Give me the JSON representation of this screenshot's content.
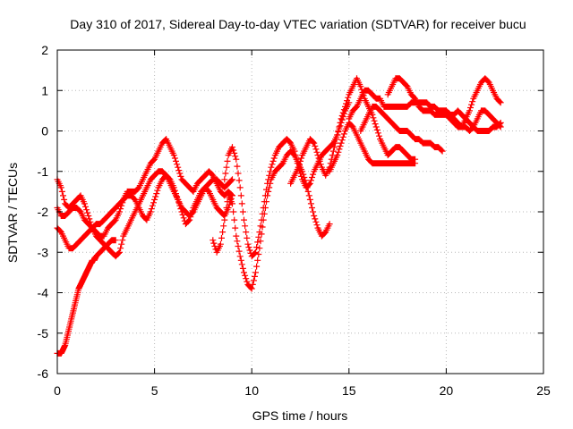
{
  "chart_data": {
    "type": "scatter",
    "title": "Day 310 of 2017, Sidereal Day-to-day VTEC variation (SDTVAR) for receiver bucu",
    "xlabel": "GPS time / hours",
    "ylabel": "SDTVAR / TECUs",
    "xlim": [
      0,
      25
    ],
    "ylim": [
      -6,
      2
    ],
    "xticks": [
      0,
      5,
      10,
      15,
      20,
      25
    ],
    "yticks": [
      -6,
      -5,
      -4,
      -3,
      -2,
      -1,
      0,
      1,
      2
    ],
    "xtick_labels": [
      "0",
      "5",
      "10",
      "15",
      "20",
      "25"
    ],
    "ytick_labels": [
      "-6",
      "-5",
      "-4",
      "-3",
      "-2",
      "-1",
      "0",
      "1",
      "2"
    ],
    "grid": true,
    "marker": "+",
    "color": "#ff0000",
    "series": [
      {
        "x": [
          0,
          0.2,
          0.4,
          0.6,
          0.8,
          1.0,
          1.2,
          1.4,
          1.6,
          1.8,
          2.0,
          2.2,
          2.4,
          2.6,
          2.8,
          3.0,
          3.2,
          3.4,
          3.6,
          3.8,
          4.0,
          4.2,
          4.4,
          4.6,
          4.8,
          5.0,
          5.2,
          5.4,
          5.6,
          5.8,
          6.0,
          6.2,
          6.4,
          6.6,
          6.8,
          7.0,
          7.2,
          7.4,
          7.6,
          7.8,
          8.0,
          8.2,
          8.4,
          8.6,
          8.8,
          9.0
        ],
        "y": [
          -1.2,
          -1.4,
          -1.8,
          -1.9,
          -1.8,
          -1.7,
          -1.6,
          -1.8,
          -2.1,
          -2.4,
          -2.5,
          -2.6,
          -2.6,
          -2.4,
          -2.3,
          -2.2,
          -2.0,
          -1.7,
          -1.5,
          -1.5,
          -1.5,
          -1.4,
          -1.2,
          -1.0,
          -0.8,
          -0.7,
          -0.5,
          -0.3,
          -0.2,
          -0.4,
          -0.6,
          -0.9,
          -1.2,
          -1.3,
          -1.4,
          -1.5,
          -1.3,
          -1.2,
          -1.1,
          -1.0,
          -1.1,
          -1.3,
          -1.5,
          -1.6,
          -1.5,
          -1.6
        ]
      },
      {
        "x": [
          0,
          0.2,
          0.4,
          0.6,
          0.8,
          1.0,
          1.2,
          1.4,
          1.6,
          1.8,
          2.0,
          2.2,
          2.4,
          2.6,
          2.8,
          3.0,
          3.2,
          3.4,
          3.6,
          3.8,
          4.0,
          4.2,
          4.4,
          4.6,
          4.8,
          5.0,
          5.2,
          5.4,
          5.6,
          5.8,
          6.0,
          6.2,
          6.4,
          6.6,
          6.8,
          7.0,
          7.2,
          7.4,
          7.6,
          7.8,
          8.0,
          8.2,
          8.4,
          8.6,
          8.8,
          9.0
        ],
        "y": [
          -1.9,
          -2.1,
          -2.1,
          -2.0,
          -1.9,
          -1.9,
          -2.0,
          -2.2,
          -2.3,
          -2.4,
          -2.6,
          -2.7,
          -2.8,
          -2.9,
          -3.0,
          -3.1,
          -3.0,
          -2.6,
          -2.4,
          -2.2,
          -2.0,
          -1.8,
          -1.6,
          -1.4,
          -1.2,
          -1.1,
          -1.0,
          -1.0,
          -1.1,
          -1.3,
          -1.5,
          -1.7,
          -1.9,
          -2.0,
          -2.1,
          -2.0,
          -1.8,
          -1.6,
          -1.4,
          -1.3,
          -1.2,
          -1.2,
          -1.3,
          -1.4,
          -1.3,
          -1.2
        ]
      },
      {
        "x": [
          0,
          0.2,
          0.4,
          0.6,
          0.8,
          1.0,
          1.2,
          1.4,
          1.6,
          1.8,
          2.0,
          2.2,
          2.4,
          2.6,
          2.8,
          3.0,
          3.2,
          3.4,
          3.6,
          3.8,
          4.0,
          4.2,
          4.4,
          4.6,
          4.8,
          5.0,
          5.2,
          5.4,
          5.6,
          5.8,
          6.0,
          6.2,
          6.4,
          6.6,
          6.8,
          7.0,
          7.2,
          7.4,
          7.6,
          7.8,
          8.0,
          8.2,
          8.4,
          8.6,
          8.8,
          9.0
        ],
        "y": [
          -2.4,
          -2.5,
          -2.7,
          -2.9,
          -2.9,
          -2.8,
          -2.7,
          -2.6,
          -2.5,
          -2.4,
          -2.3,
          -2.3,
          -2.2,
          -2.1,
          -2.0,
          -1.9,
          -1.8,
          -1.7,
          -1.6,
          -1.6,
          -1.7,
          -1.9,
          -2.1,
          -2.2,
          -2.0,
          -1.7,
          -1.4,
          -1.2,
          -1.1,
          -1.2,
          -1.4,
          -1.7,
          -2.0,
          -2.3,
          -2.2,
          -1.9,
          -1.7,
          -1.5,
          -1.4,
          -1.5,
          -1.7,
          -1.9,
          -2.0,
          -2.1,
          -1.9,
          -1.6
        ]
      },
      {
        "x": [
          0,
          0.1,
          0.2,
          0.3,
          0.4,
          0.5,
          0.6,
          0.7,
          0.8,
          0.9,
          1.0,
          1.1,
          1.2,
          1.3,
          1.4,
          1.5,
          1.6,
          1.7,
          1.8,
          1.9,
          2.0,
          2.2,
          2.4,
          2.6,
          2.8,
          3.0
        ],
        "y": [
          -5.5,
          -5.5,
          -5.5,
          -5.4,
          -5.3,
          -5.1,
          -4.9,
          -4.7,
          -4.5,
          -4.3,
          -4.1,
          -3.9,
          -3.8,
          -3.7,
          -3.6,
          -3.5,
          -3.4,
          -3.3,
          -3.2,
          -3.2,
          -3.1,
          -3.0,
          -2.9,
          -2.8,
          -2.7,
          -2.7
        ]
      },
      {
        "x": [
          8.0,
          8.2,
          8.4,
          8.6,
          8.8,
          9.0,
          9.2,
          9.4,
          9.6,
          9.8,
          10.0,
          10.2,
          10.4,
          10.6,
          10.8,
          11.0,
          11.2,
          11.4,
          11.6,
          11.8,
          12.0,
          12.2,
          12.4,
          12.6,
          12.8,
          13.0,
          13.2,
          13.4,
          13.6,
          13.8,
          14.0
        ],
        "y": [
          -2.7,
          -3.0,
          -2.8,
          -2.2,
          -1.6,
          -1.8,
          -2.6,
          -3.1,
          -3.5,
          -3.8,
          -3.9,
          -3.5,
          -2.9,
          -2.2,
          -1.6,
          -1.2,
          -1.0,
          -0.9,
          -0.8,
          -0.6,
          -0.5,
          -0.6,
          -0.8,
          -1.0,
          -1.3,
          -1.7,
          -2.1,
          -2.4,
          -2.6,
          -2.5,
          -2.3
        ]
      },
      {
        "x": [
          8.6,
          8.8,
          9.0,
          9.2,
          9.4,
          9.6,
          9.8,
          10.0,
          10.2,
          10.4,
          10.6,
          10.8,
          11.0,
          11.2,
          11.4,
          11.6,
          11.8,
          12.0,
          12.2,
          12.4,
          12.6,
          12.8,
          13.0,
          13.2,
          13.4,
          13.6,
          13.8,
          14.0,
          14.2,
          14.4,
          14.6,
          14.8,
          15.0
        ],
        "y": [
          -1.2,
          -0.6,
          -0.4,
          -0.7,
          -1.4,
          -2.2,
          -2.8,
          -3.1,
          -3.0,
          -2.5,
          -1.9,
          -1.3,
          -0.9,
          -0.6,
          -0.4,
          -0.3,
          -0.2,
          -0.3,
          -0.5,
          -0.9,
          -1.2,
          -1.4,
          -1.3,
          -1.0,
          -0.8,
          -0.6,
          -0.5,
          -0.4,
          -0.3,
          -0.1,
          0.2,
          0.5,
          0.7
        ]
      },
      {
        "x": [
          12.0,
          12.2,
          12.4,
          12.6,
          12.8,
          13.0,
          13.2,
          13.4,
          13.6,
          13.8,
          14.0,
          14.2,
          14.4,
          14.6,
          14.8,
          15.0,
          15.2,
          15.4,
          15.6,
          15.8,
          16.0,
          16.2,
          16.4,
          16.6,
          16.8,
          17.0,
          17.2,
          17.4,
          17.6,
          17.8,
          18.0,
          18.2,
          18.4
        ],
        "y": [
          -1.3,
          -1.1,
          -0.9,
          -0.6,
          -0.4,
          -0.2,
          -0.3,
          -0.6,
          -0.9,
          -1.1,
          -0.9,
          -0.5,
          -0.1,
          0.3,
          0.6,
          0.9,
          1.1,
          1.3,
          1.1,
          0.8,
          0.6,
          0.4,
          0.1,
          -0.2,
          -0.4,
          -0.6,
          -0.5,
          -0.4,
          -0.4,
          -0.5,
          -0.6,
          -0.7,
          -0.7
        ]
      },
      {
        "x": [
          14.0,
          14.2,
          14.4,
          14.6,
          14.8,
          15.0,
          15.2,
          15.4,
          15.6,
          15.8,
          16.0,
          16.2,
          16.4,
          16.6,
          16.8,
          17.0,
          17.2,
          17.4,
          17.6,
          17.8,
          18.0,
          18.2,
          18.4
        ],
        "y": [
          -1.0,
          -0.8,
          -0.6,
          -0.3,
          0.0,
          0.2,
          0.1,
          -0.1,
          -0.3,
          -0.5,
          -0.7,
          -0.8,
          -0.8,
          -0.8,
          -0.8,
          -0.8,
          -0.8,
          -0.8,
          -0.8,
          -0.8,
          -0.8,
          -0.8,
          -0.8
        ]
      },
      {
        "x": [
          15.0,
          15.2,
          15.4,
          15.6,
          15.8,
          16.0,
          16.2,
          16.4,
          16.6,
          16.8,
          17.0,
          17.2,
          17.4,
          17.6,
          17.8,
          18.0,
          18.2,
          18.4,
          18.6,
          18.8,
          19.0,
          19.2,
          19.4,
          19.6,
          19.8,
          20.0,
          20.2,
          20.4,
          20.6,
          20.8,
          21.0,
          21.2,
          21.4,
          21.6,
          21.8,
          22.0,
          22.2,
          22.4,
          22.6,
          22.8
        ],
        "y": [
          0.3,
          0.5,
          0.6,
          0.8,
          1.0,
          1.0,
          0.9,
          0.8,
          0.8,
          0.6,
          0.6,
          0.6,
          0.6,
          0.6,
          0.6,
          0.6,
          0.7,
          0.7,
          0.7,
          0.7,
          0.7,
          0.6,
          0.6,
          0.5,
          0.5,
          0.5,
          0.4,
          0.3,
          0.2,
          0.1,
          0.1,
          0.0,
          0.1,
          0.3,
          0.5,
          0.5,
          0.4,
          0.3,
          0.2,
          0.1
        ]
      },
      {
        "x": [
          15.6,
          15.8,
          16.0,
          16.2,
          16.4,
          16.6,
          16.8,
          17.0,
          17.2,
          17.4,
          17.6,
          17.8,
          18.0,
          18.2,
          18.4,
          18.6,
          18.8,
          19.0,
          19.2,
          19.4,
          19.6,
          19.8
        ],
        "y": [
          0.0,
          0.2,
          0.4,
          0.6,
          0.6,
          0.5,
          0.4,
          0.3,
          0.2,
          0.1,
          0.0,
          0.0,
          0.0,
          -0.1,
          -0.2,
          -0.2,
          -0.3,
          -0.3,
          -0.3,
          -0.4,
          -0.4,
          -0.5
        ]
      },
      {
        "x": [
          17.0,
          17.2,
          17.4,
          17.6,
          17.8,
          18.0,
          18.2,
          18.4,
          18.6,
          18.8,
          19.0,
          19.2,
          19.4,
          19.6,
          19.8,
          20.0,
          20.2,
          20.4,
          20.6,
          20.8,
          21.0,
          21.2,
          21.4,
          21.6,
          21.8,
          22.0,
          22.2,
          22.4,
          22.6,
          22.8
        ],
        "y": [
          0.9,
          1.1,
          1.3,
          1.3,
          1.2,
          1.1,
          0.9,
          0.8,
          0.6,
          0.5,
          0.5,
          0.5,
          0.4,
          0.4,
          0.4,
          0.4,
          0.3,
          0.2,
          0.1,
          0.1,
          0.3,
          0.5,
          0.8,
          1.0,
          1.2,
          1.3,
          1.2,
          1.0,
          0.8,
          0.7
        ]
      },
      {
        "x": [
          19.6,
          19.8,
          20.0,
          20.2,
          20.4,
          20.6,
          20.8,
          21.0,
          21.2,
          21.4,
          21.6,
          21.8,
          22.0,
          22.2,
          22.4,
          22.6,
          22.8
        ],
        "y": [
          0.5,
          0.5,
          0.5,
          0.4,
          0.4,
          0.5,
          0.4,
          0.3,
          0.2,
          0.1,
          0.0,
          0.0,
          0.0,
          0.0,
          0.1,
          0.1,
          0.2
        ]
      }
    ]
  }
}
